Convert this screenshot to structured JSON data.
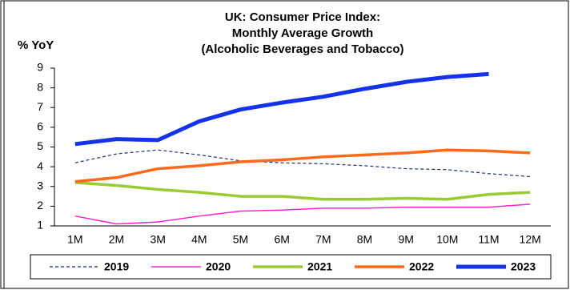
{
  "chart_data": {
    "type": "line",
    "title": [
      "UK: Consumer Price Index:",
      "Monthly Average Growth",
      "(Alcoholic Beverages and Tobacco)"
    ],
    "y_label": "% YoY",
    "categories": [
      "1M",
      "2M",
      "3M",
      "4M",
      "5M",
      "6M",
      "7M",
      "8M",
      "9M",
      "10M",
      "11M",
      "12M"
    ],
    "series": [
      {
        "name": "2019",
        "color": "#1f2f7a",
        "line_width": 1.2,
        "dashed": true,
        "values": [
          4.2,
          4.65,
          4.85,
          4.6,
          4.3,
          4.2,
          4.15,
          4.05,
          3.9,
          3.85,
          3.65,
          3.5
        ]
      },
      {
        "name": "2020",
        "color": "#ff22cc",
        "line_width": 1.5,
        "dashed": false,
        "values": [
          1.5,
          1.1,
          1.2,
          1.5,
          1.75,
          1.8,
          1.9,
          1.9,
          1.95,
          1.95,
          1.95,
          2.1
        ]
      },
      {
        "name": "2021",
        "color": "#99cc33",
        "line_width": 3.5,
        "dashed": false,
        "values": [
          3.2,
          3.05,
          2.85,
          2.7,
          2.5,
          2.5,
          2.35,
          2.35,
          2.4,
          2.35,
          2.6,
          2.7
        ]
      },
      {
        "name": "2022",
        "color": "#ff6a1a",
        "line_width": 3.5,
        "dashed": false,
        "values": [
          3.25,
          3.45,
          3.9,
          4.05,
          4.25,
          4.35,
          4.5,
          4.6,
          4.7,
          4.85,
          4.8,
          4.7
        ]
      },
      {
        "name": "2023",
        "color": "#1432e6",
        "line_width": 5,
        "dashed": false,
        "values": [
          5.15,
          5.4,
          5.35,
          6.3,
          6.9,
          7.25,
          7.55,
          7.95,
          8.3,
          8.55,
          8.7,
          null
        ]
      }
    ],
    "ylim": [
      1,
      9
    ],
    "yticks": [
      1,
      2,
      3,
      4,
      5,
      6,
      7,
      8,
      9
    ],
    "grid": false
  }
}
